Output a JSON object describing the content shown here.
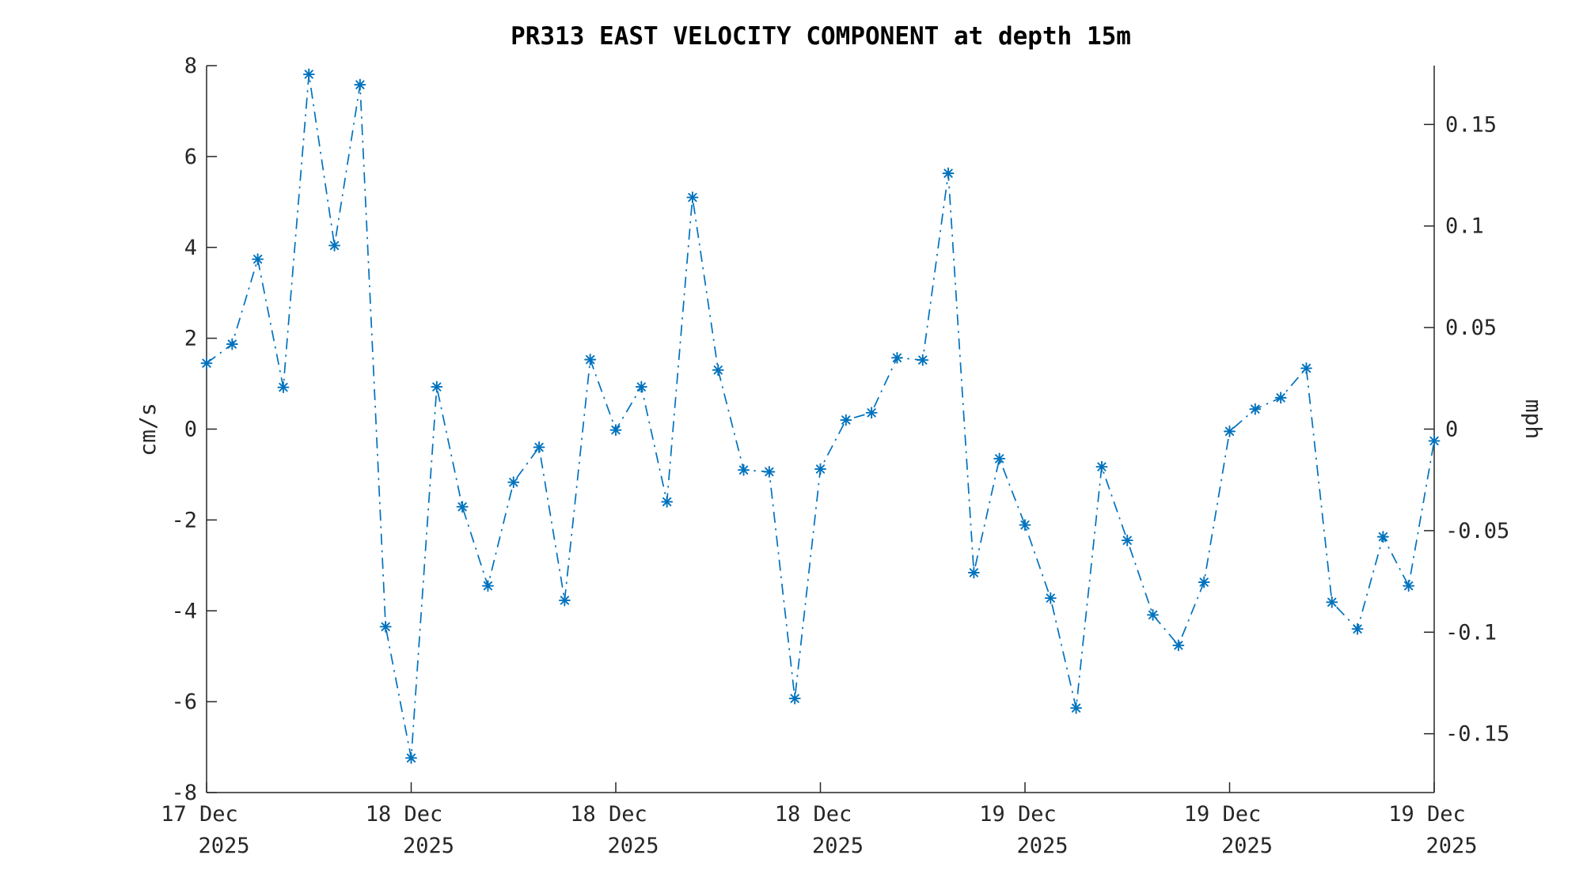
{
  "figure": {
    "background": "#ffffff",
    "text_color": "#262626"
  },
  "chart_data": {
    "type": "line",
    "title": "PR313 EAST VELOCITY COMPONENT at depth 15m",
    "ylabel_left": "cm/s",
    "ylabel_right": "mph",
    "legend": "none",
    "grid": false,
    "line_color": "#0072BD",
    "line_style": "dash-dot",
    "marker": "asterisk",
    "ylim": [
      -8,
      8
    ],
    "y_ticks_left": [
      "8",
      "6",
      "4",
      "2",
      "0",
      "-2",
      "-4",
      "-6",
      "-8"
    ],
    "y_ticks_right": [
      "0.15",
      "0.1",
      "0.05",
      "0",
      "-0.05",
      "-0.1",
      "-0.15"
    ],
    "mph_per_cms": 0.0223694,
    "x_count": 49,
    "x_tick_indices": [
      0,
      8,
      16,
      24,
      32,
      40,
      48
    ],
    "x_tick_labels": [
      {
        "day": "17 Dec",
        "year": "2025"
      },
      {
        "day": "18 Dec",
        "year": "2025"
      },
      {
        "day": "18 Dec",
        "year": "2025"
      },
      {
        "day": "18 Dec",
        "year": "2025"
      },
      {
        "day": "19 Dec",
        "year": "2025"
      },
      {
        "day": "19 Dec",
        "year": "2025"
      },
      {
        "day": "19 Dec",
        "year": "2025"
      }
    ],
    "values": [
      1.45,
      1.87,
      3.74,
      0.92,
      7.81,
      4.04,
      7.58,
      -4.35,
      -7.24,
      0.93,
      -1.71,
      -3.45,
      -1.17,
      -0.4,
      -3.77,
      1.53,
      -0.02,
      0.93,
      -1.6,
      5.1,
      1.3,
      -0.9,
      -0.94,
      -5.93,
      -0.88,
      0.2,
      0.36,
      1.57,
      1.52,
      5.63,
      -3.16,
      -0.65,
      -2.11,
      -3.72,
      -6.14,
      -0.83,
      -2.45,
      -4.09,
      -4.76,
      -3.37,
      -0.05,
      0.44,
      0.69,
      1.34,
      -3.81,
      -4.4,
      -2.37,
      -3.45,
      -0.26
    ]
  }
}
